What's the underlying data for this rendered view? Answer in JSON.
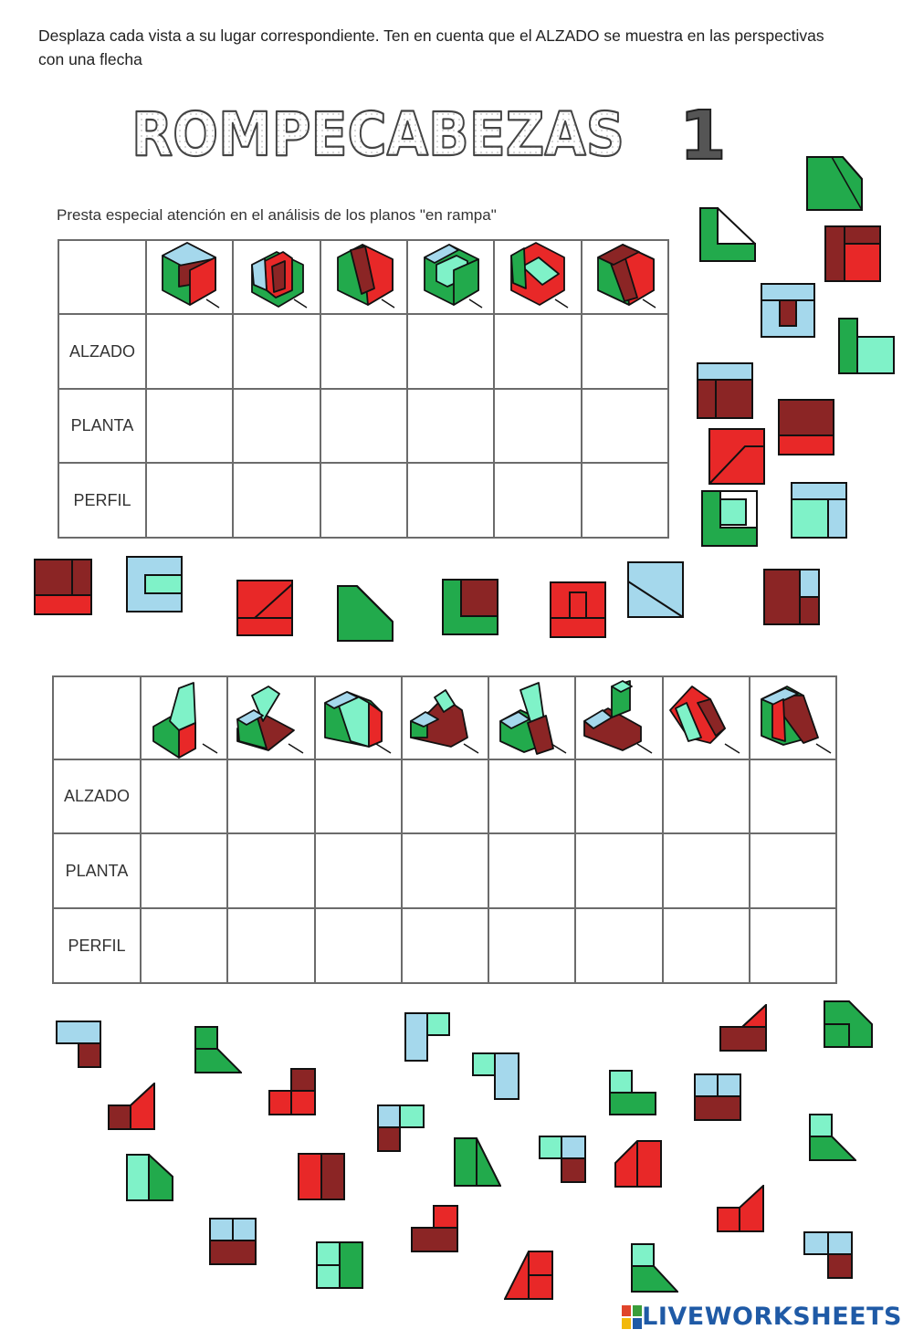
{
  "instruction": "Desplaza cada vista a su lugar correspondiente. Ten en cuenta que el ALZADO se muestra en las perspectivas con una flecha",
  "title_word": "ROMPECABEZAS",
  "title_number": "1",
  "subtitle": "Presta especial atención en el análisis de los planos \"en rampa\"",
  "row_labels": {
    "alzado": "ALZADO",
    "planta": "PLANTA",
    "perfil": "PERFIL"
  },
  "colors": {
    "green": "#22aa4c",
    "dark_red": "#8b2525",
    "red": "#e82828",
    "light_blue": "#a5d8ec",
    "mint": "#7ff2c8",
    "outline": "#111111"
  },
  "icons": {
    "arrow": "view-direction-arrow-icon"
  },
  "table1": {
    "columns": 6
  },
  "table2": {
    "columns": 8
  },
  "brand": "LIVEWORKSHEETS"
}
